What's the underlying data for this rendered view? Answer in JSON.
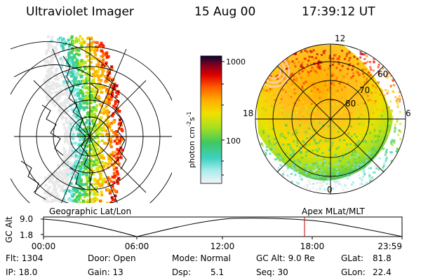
{
  "header": {
    "instrument": "Ultraviolet Imager",
    "date": "15 Aug 00",
    "time": "17:39:12 UT"
  },
  "colorbar": {
    "unit_label": "photon cm",
    "unit_sup1": "-2",
    "unit_s": "s",
    "unit_sup2": "-1",
    "tick_1000": "1000",
    "tick_100": "100"
  },
  "left_map": {
    "label": "Geographic Lat/Lon"
  },
  "right_map": {
    "label": "Apex MLat/MLT",
    "lat_labels": [
      "60",
      "70",
      "80"
    ],
    "mlt_labels": [
      "12",
      "18",
      "6",
      "0"
    ]
  },
  "altitude_plot": {
    "ylabel": "GC Alt",
    "yticks": [
      "9.0",
      "1.8"
    ],
    "xticks": [
      "00:00",
      "06:00",
      "12:00",
      "18:00",
      "23:59"
    ],
    "current_time_marker": "17:39"
  },
  "status": {
    "flt": "Flt: 1304",
    "ip": "IP: 18.0",
    "door": "Door: Open",
    "gain": "Gain: 13",
    "mode": "Mode: Normal",
    "dsp_label": "Dsp:",
    "dsp_value": "5.1",
    "gcalt": "GC Alt: 9.0 Re",
    "seq": "Seq: 30",
    "glat_label": "GLat:",
    "glat_value": "81.8",
    "glon_label": "GLon:",
    "glon_value": "22.4"
  },
  "colors": {
    "scale": [
      "#e8e8e8",
      "#7fe8e8",
      "#3cd0a0",
      "#50d040",
      "#b8e820",
      "#f0e000",
      "#ffb000",
      "#ff7000",
      "#ff2000",
      "#c00000",
      "#600020",
      "#101040"
    ],
    "marker": "#c00000"
  }
}
